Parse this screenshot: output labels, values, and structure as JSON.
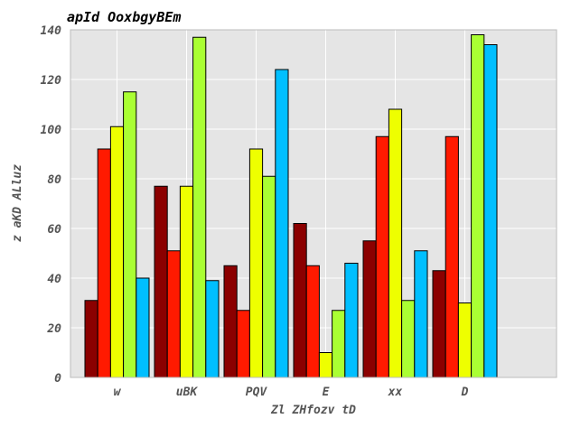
{
  "chart_data": {
    "type": "bar",
    "title": "apId OoxbgyBEm",
    "xlabel": "Zl ZHfozv tD",
    "ylabel": "z aKD ALluz",
    "categories": [
      "w",
      "uBK",
      "PQV",
      "E",
      "xx",
      "D"
    ],
    "ylim": [
      0,
      140
    ],
    "yticks": [
      0,
      20,
      40,
      60,
      80,
      100,
      120,
      140
    ],
    "grid": true,
    "background": "#e5e5e5",
    "series": [
      {
        "color": "#8b0000",
        "values": [
          31,
          77,
          45,
          62,
          55,
          43
        ]
      },
      {
        "color": "#ff1a00",
        "values": [
          92,
          51,
          27,
          45,
          97,
          97
        ]
      },
      {
        "color": "#eeff00",
        "values": [
          101,
          77,
          92,
          10,
          108,
          30
        ]
      },
      {
        "color": "#aaff33",
        "values": [
          115,
          137,
          81,
          27,
          31,
          138
        ]
      },
      {
        "color": "#00bfff",
        "values": [
          40,
          39,
          124,
          46,
          51,
          134
        ]
      }
    ]
  }
}
